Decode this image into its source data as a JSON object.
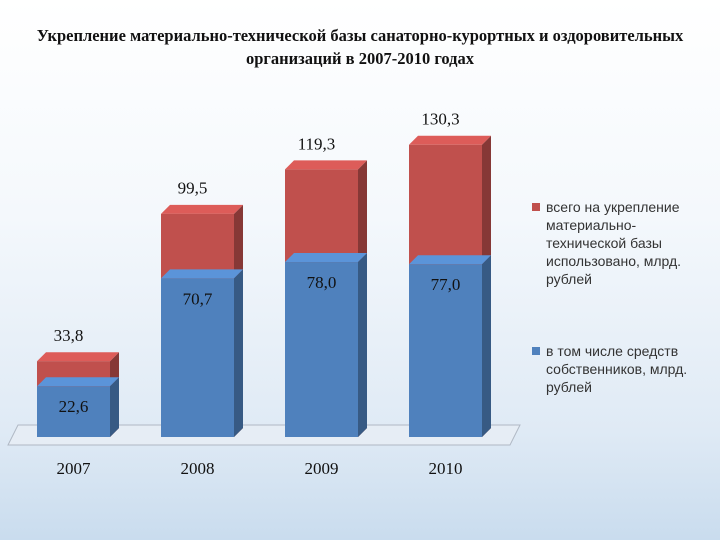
{
  "chart_data": {
    "type": "bar",
    "title": "Укрепление материально-технической базы санаторно-курортных и оздоровительных организаций в 2007-2010 годах",
    "categories": [
      "2007",
      "2008",
      "2009",
      "2010"
    ],
    "series": [
      {
        "name": "всего на укрепление материально-технической базы использовано, млрд. рублей",
        "color": "#c0504d",
        "values": [
          33.8,
          99.5,
          119.3,
          130.3
        ],
        "value_labels": [
          "33,8",
          "99,5",
          "119,3",
          "130,3"
        ]
      },
      {
        "name": "в том числе средств собственников, млрд. рублей",
        "color": "#4f81bd",
        "values": [
          22.6,
          70.7,
          78.0,
          77.0
        ],
        "value_labels": [
          "22,6",
          "70,7",
          "78,0",
          "77,0"
        ]
      }
    ],
    "ylim": [
      0,
      140
    ]
  }
}
